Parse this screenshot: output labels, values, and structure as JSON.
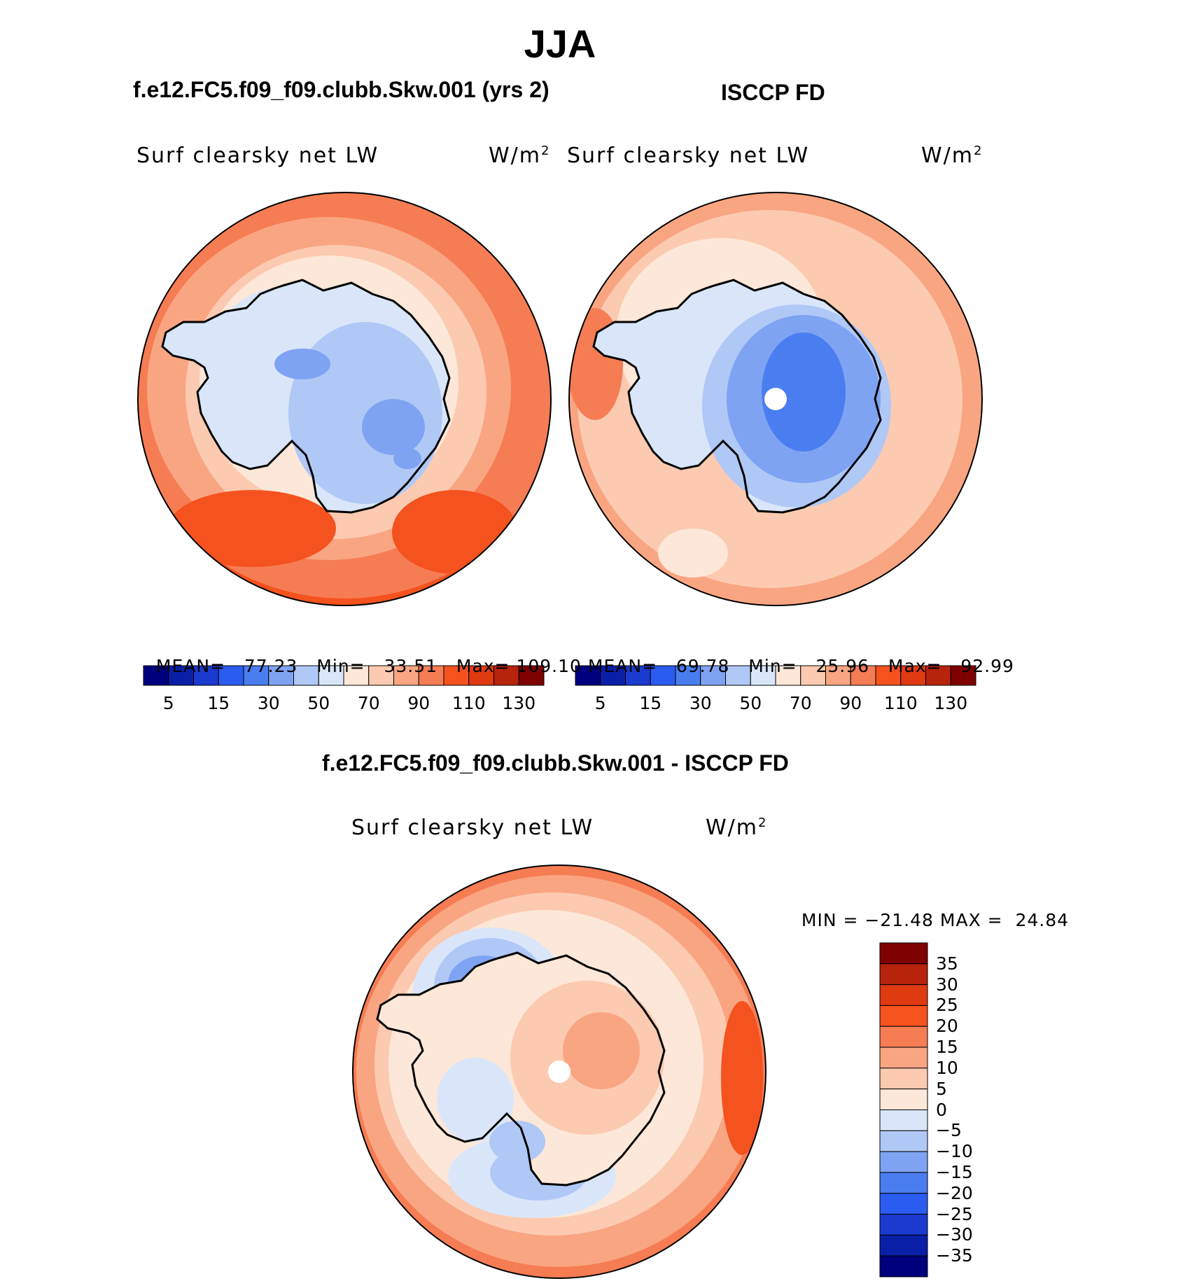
{
  "figure": {
    "season": "JJA",
    "left_case": "f.e12.FC5.f09_f09.clubb.Skw.001 (yrs 2)",
    "right_case": "ISCCP FD",
    "diff_case": "f.e12.FC5.f09_f09.clubb.Skw.001 - ISCCP FD"
  },
  "panels": {
    "left": {
      "variable": "Surf clearsky net LW",
      "units": "W/m",
      "units_exp": "2",
      "mean_label": "MEAN=",
      "mean": "77.23",
      "min_label": "Min=",
      "min": "33.51",
      "max_label": "Max=",
      "max": "109.10"
    },
    "right": {
      "variable": "Surf clearsky net LW",
      "units": "W/m",
      "units_exp": "2",
      "mean_label": "MEAN=",
      "mean": "69.78",
      "min_label": "Min=",
      "min": "25.96",
      "max_label": "Max=",
      "max": "92.99"
    },
    "diff": {
      "variable": "Surf clearsky net LW",
      "units": "W/m",
      "units_exp": "2",
      "min_label": "MIN =",
      "min": "−21.48",
      "max_label": "MAX =",
      "max": "24.84"
    }
  },
  "colorbars": {
    "abs_ticks": [
      "5",
      "15",
      "30",
      "50",
      "70",
      "90",
      "110",
      "130"
    ],
    "abs_colors": [
      "#00007f",
      "#0a1fa8",
      "#1a3ad0",
      "#2a5cf0",
      "#4a7ef0",
      "#7fa3f3",
      "#b0c8f6",
      "#d9e6fa",
      "#fde7d8",
      "#fccab0",
      "#f9a582",
      "#f67c54",
      "#f4521e",
      "#e03a10",
      "#b8230c",
      "#7f0000"
    ],
    "diff_ticks": [
      "35",
      "30",
      "25",
      "20",
      "15",
      "10",
      "5",
      "0",
      "−5",
      "−10",
      "−15",
      "−20",
      "−25",
      "−30",
      "−35"
    ],
    "diff_colors": [
      "#7f0000",
      "#b8230c",
      "#e03a10",
      "#f4521e",
      "#f67c54",
      "#f9a582",
      "#fccab0",
      "#fde7d8",
      "#d9e6fa",
      "#b0c8f6",
      "#7fa3f3",
      "#4a7ef0",
      "#2a5cf0",
      "#1a3ad0",
      "#0a1fa8",
      "#00007f"
    ]
  }
}
